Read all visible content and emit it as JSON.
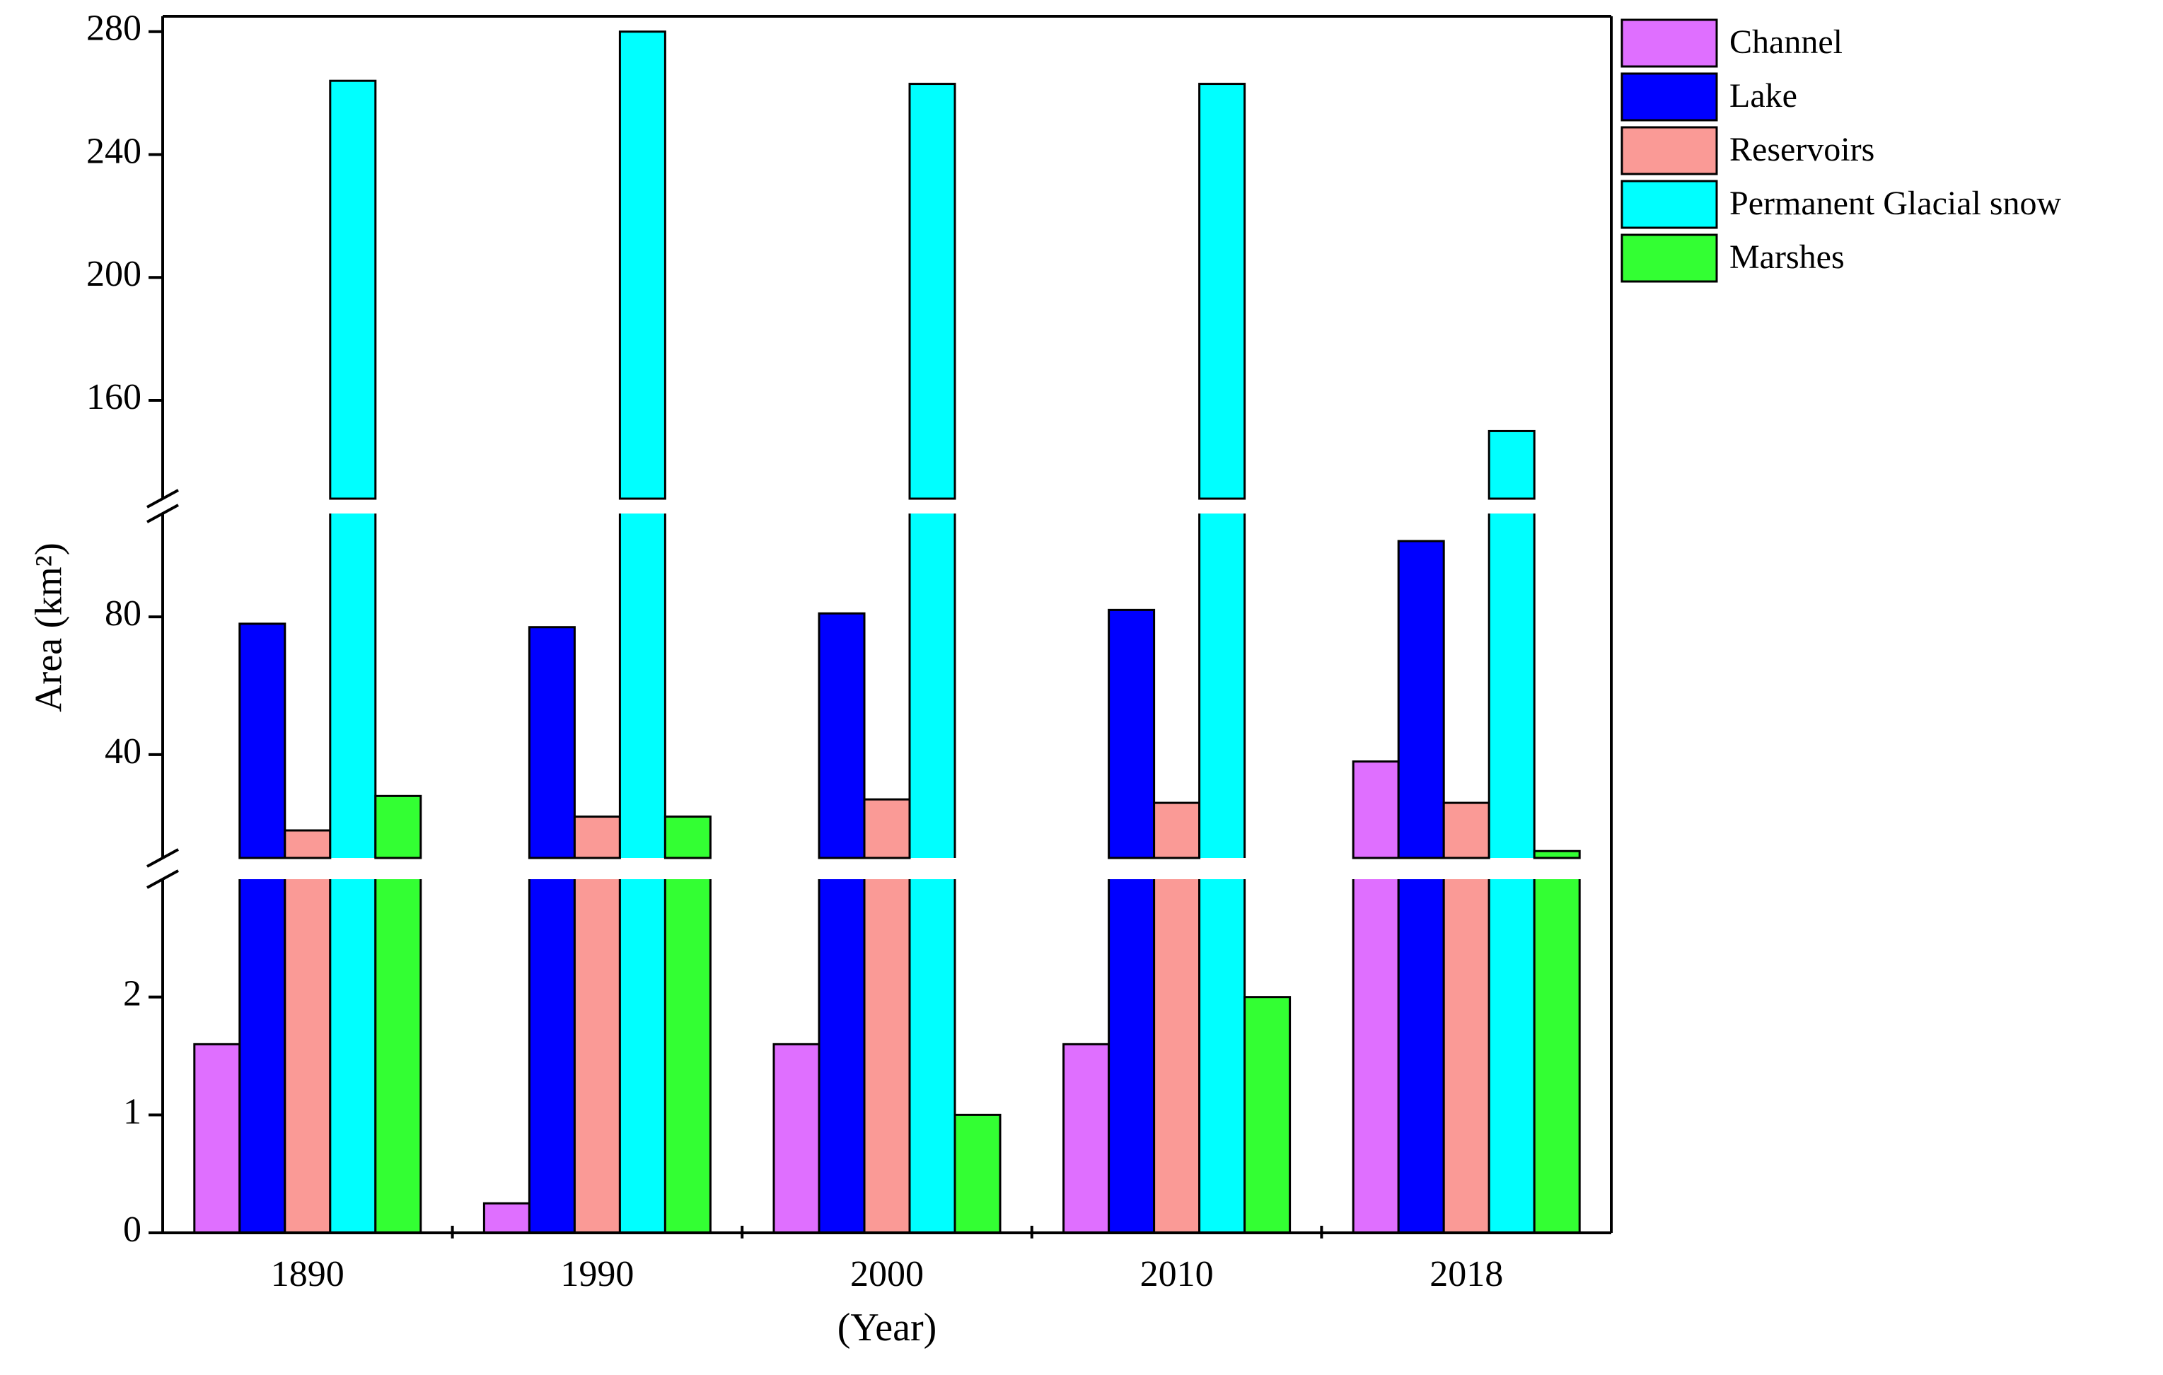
{
  "chart_data": {
    "type": "bar",
    "ylabel": "Area (km²)",
    "xlabel": "(Year)",
    "categories": [
      "1890",
      "1990",
      "2000",
      "2010",
      "2018"
    ],
    "series": [
      {
        "name": "Channel",
        "color": "#df6fff",
        "values": [
          1.6,
          0.25,
          1.6,
          1.6,
          38
        ]
      },
      {
        "name": "Lake",
        "color": "#0000ff",
        "values": [
          78,
          77,
          81,
          82,
          102
        ]
      },
      {
        "name": "Reservoirs",
        "color": "#fa9a96",
        "values": [
          18,
          22,
          27,
          26,
          26
        ]
      },
      {
        "name": "Permanent Glacial snow",
        "color": "#00ffff",
        "values": [
          264,
          280,
          263,
          263,
          150
        ]
      },
      {
        "name": "Marshes",
        "color": "#33ff33",
        "values": [
          28,
          22,
          1,
          2,
          12
        ]
      }
    ],
    "y_segments": [
      {
        "ylim": [
          0,
          3
        ],
        "yticks": [
          0,
          1,
          2
        ]
      },
      {
        "ylim": [
          10,
          110
        ],
        "yticks": [
          40,
          80
        ]
      },
      {
        "ylim": [
          128,
          285
        ],
        "yticks": [
          160,
          200,
          240,
          280
        ]
      }
    ],
    "legend": "outside-right"
  }
}
